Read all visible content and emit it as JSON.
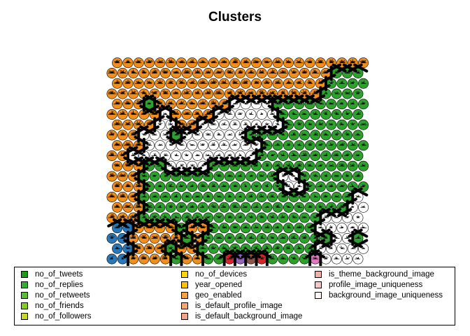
{
  "chart_data": {
    "type": "heatmap",
    "title": "Clusters",
    "grid": {
      "rows": 20,
      "columns": 24,
      "topology": "hexagonal"
    },
    "cluster_colors": {
      "orange": "#f28e1c",
      "green": "#2ea02e",
      "white": "#ffffff",
      "blue": "#2a78b8",
      "red": "#d62728",
      "purple": "#9467bd",
      "brown": "#8c564b",
      "pink": "#e377c2"
    },
    "codebook_variables": [
      {
        "name": "no_of_tweets",
        "color": "#1a9a1a"
      },
      {
        "name": "no_of_replies",
        "color": "#33b033"
      },
      {
        "name": "no_of_retweets",
        "color": "#55c033"
      },
      {
        "name": "no_of_friends",
        "color": "#88cc22"
      },
      {
        "name": "no_of_followers",
        "color": "#c8d822"
      },
      {
        "name": "no_of_devices",
        "color": "#ffd700"
      },
      {
        "name": "year_opened",
        "color": "#ffc200"
      },
      {
        "name": "geo_enabled",
        "color": "#f6a040"
      },
      {
        "name": "is_default_profile_image",
        "color": "#f3a775"
      },
      {
        "name": "is_default_background_image",
        "color": "#f2a585"
      },
      {
        "name": "is_theme_background_image",
        "color": "#f2b0a8"
      },
      {
        "name": "profile_image_uniqueness",
        "color": "#f5c8c8"
      },
      {
        "name": "background_image_uniqueness",
        "color": "#fff8f6"
      }
    ],
    "legend": "bottom",
    "legend_columns": 3
  }
}
